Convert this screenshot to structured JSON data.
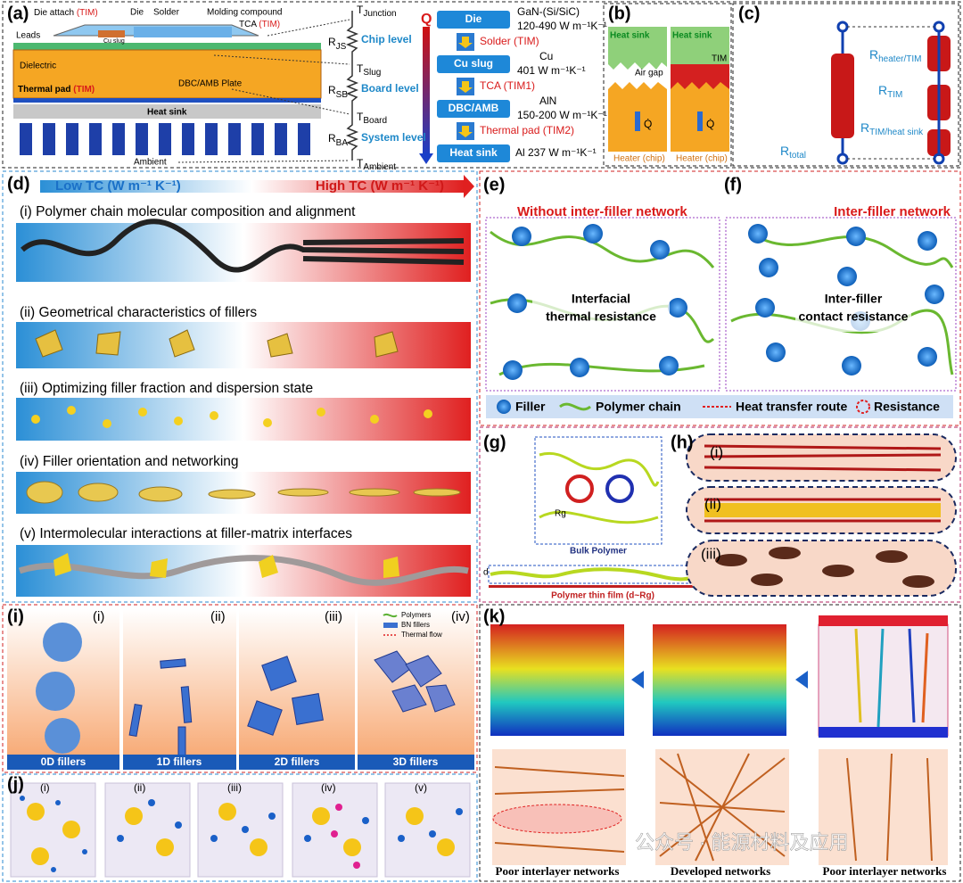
{
  "a": {
    "label": "(a)",
    "leads": "Leads",
    "die_attach": "Die attach",
    "die_attach_tim": "(TIM)",
    "die": "Die",
    "solder": "Solder",
    "molding": "Molding compound",
    "tca": "TCA",
    "tca_tim": "(TIM)",
    "cu_slug": "Cu slug",
    "dielectric": "Dielectric",
    "thermal_pad": "Thermal pad",
    "thermal_pad_tim": "(TIM)",
    "plate": "DBC/AMB Plate",
    "heat_sink": "Heat sink",
    "ambient": "Ambient",
    "resistances": [
      {
        "main": "R",
        "sub": "JS"
      },
      {
        "main": "R",
        "sub": "SB"
      },
      {
        "main": "R",
        "sub": "BA"
      }
    ],
    "temps": [
      {
        "main": "T",
        "sub": "Junction"
      },
      {
        "main": "T",
        "sub": "Slug"
      },
      {
        "main": "T",
        "sub": "Board"
      },
      {
        "main": "T",
        "sub": "Ambient"
      }
    ],
    "levels": [
      "Chip level",
      "Board level",
      "System level"
    ],
    "q": "Q",
    "layers": [
      {
        "name": "Die",
        "material": "GaN-(Si/SiC)",
        "tc": "120-490 W m⁻¹K⁻¹"
      },
      {
        "name": "Cu slug",
        "material": "Cu",
        "tc": "401 W m⁻¹K⁻¹"
      },
      {
        "name": "DBC/AMB",
        "material": "AlN",
        "tc": "150-200 W m⁻¹K⁻¹"
      },
      {
        "name": "Heat sink",
        "material": "Al 237 W m⁻¹K⁻¹"
      }
    ],
    "interfaces": [
      "Solder (TIM)",
      "TCA (TIM1)",
      "Thermal pad (TIM2)"
    ]
  },
  "b": {
    "label": "(b)",
    "heat_sink_left": "Heat sink",
    "heat_sink_right": "Heat sink",
    "air_gap": "Air gap",
    "tim": "TIM",
    "q_left": "Q̇",
    "q_right": "Q̇",
    "heater_left": "Heater (chip)",
    "heater_right": "Heater (chip)"
  },
  "c": {
    "label": "(c)",
    "r1": {
      "main": "R",
      "sub": "heater/TIM"
    },
    "r2": {
      "main": "R",
      "sub": "TIM"
    },
    "r3": {
      "main": "R",
      "sub": "TIM/heat sink"
    },
    "rt": {
      "main": "R",
      "sub": "total"
    }
  },
  "d": {
    "label": "(d)",
    "low": "Low TC (W m⁻¹ K⁻¹)",
    "high": "High TC (W m⁻¹ K⁻¹)",
    "rows": [
      "(i) Polymer chain molecular composition and alignment",
      "(ii) Geometrical characteristics of fillers",
      "(iii) Optimizing filler fraction and dispersion state",
      "(iv) Filler orientation and networking",
      "(v) Intermolecular interactions at filler-matrix interfaces"
    ]
  },
  "e": {
    "label": "(e)",
    "title": "Without inter-filler network",
    "box_line1": "Interfacial",
    "box_line2": "thermal resistance"
  },
  "f": {
    "label": "(f)",
    "title": "Inter-filler network",
    "box_line1": "Inter-filler",
    "box_line2": "contact resistance"
  },
  "ef_legend": [
    "Filler",
    "Polymer chain",
    "Heat transfer route",
    "Resistance"
  ],
  "g": {
    "label": "(g)",
    "rg": "Rg",
    "bulk": "Bulk Polymer",
    "d": "d",
    "film": "Polymer thin film (d~Rg)"
  },
  "h": {
    "label": "(h)",
    "sub": [
      "(i)",
      "(ii)",
      "(iii)"
    ]
  },
  "i": {
    "label": "(i)",
    "sub": [
      "(i)",
      "(ii)",
      "(iii)",
      "(iv)"
    ],
    "legend": [
      "Polymers",
      "BN fillers",
      "Thermal flow"
    ],
    "captions": [
      "0D fillers",
      "1D fillers",
      "2D fillers",
      "3D fillers"
    ]
  },
  "j": {
    "label": "(j)",
    "sub": [
      "(i)",
      "(ii)",
      "(iii)",
      "(iv)",
      "(v)"
    ]
  },
  "k": {
    "label": "(k)",
    "captions": [
      "Poor interlayer networks",
      "Developed networks",
      "Poor interlayer networks"
    ]
  },
  "watermark": "公众号 · 能源材料及应用"
}
